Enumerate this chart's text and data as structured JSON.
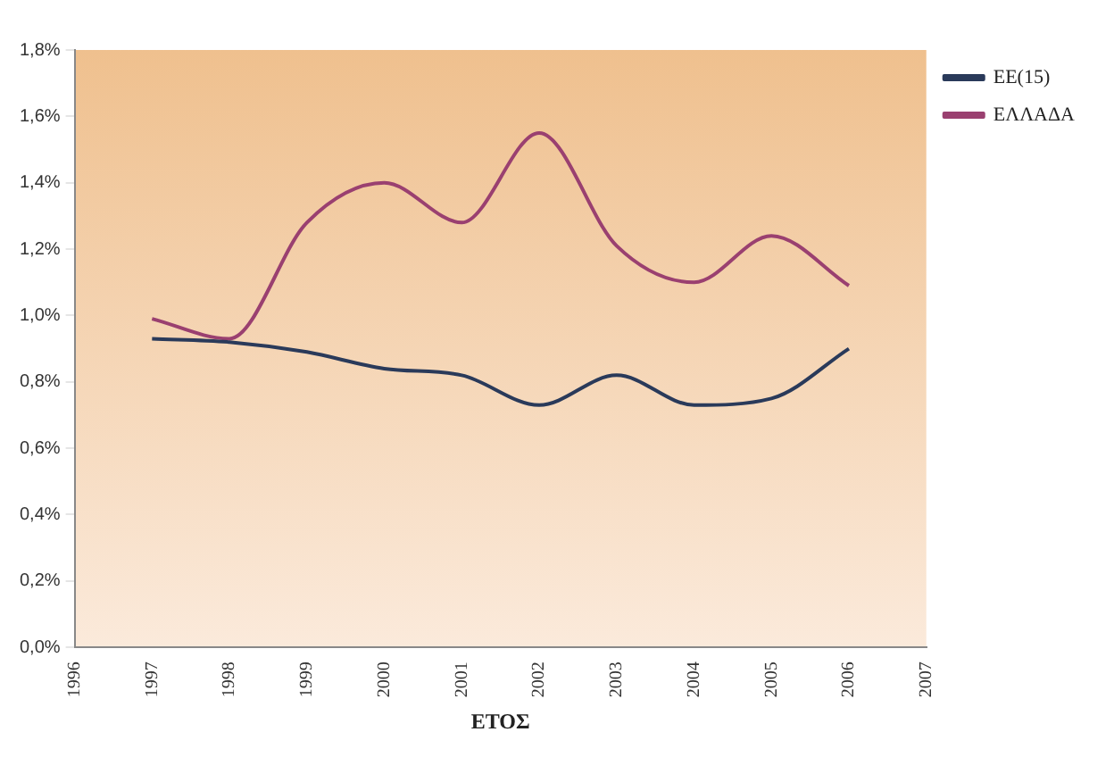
{
  "chart_data": {
    "type": "line",
    "xlabel": "ΕΤΟΣ",
    "x": [
      1997,
      1998,
      1999,
      2000,
      2001,
      2002,
      2003,
      2004,
      2005,
      2006
    ],
    "series": [
      {
        "name": "EE(15)",
        "color": "#2a3a5a",
        "values": [
          0.93,
          0.92,
          0.89,
          0.84,
          0.82,
          0.73,
          0.82,
          0.73,
          0.75,
          0.9
        ]
      },
      {
        "name": "ΕΛΛΑΔΑ",
        "color": "#9a4070",
        "values": [
          0.99,
          0.93,
          1.28,
          1.4,
          1.28,
          1.55,
          1.21,
          1.1,
          1.24,
          1.09
        ]
      }
    ],
    "xlim": [
      1996,
      2007
    ],
    "xticks": [
      1996,
      1997,
      1998,
      1999,
      2000,
      2001,
      2002,
      2003,
      2004,
      2005,
      2006,
      2007
    ],
    "ylim": [
      0,
      1.8
    ],
    "yticks": [
      {
        "value": 0,
        "label": "0,0%"
      },
      {
        "value": 0.2,
        "label": "0,2%"
      },
      {
        "value": 0.4,
        "label": "0,4%"
      },
      {
        "value": 0.6,
        "label": "0,6%"
      },
      {
        "value": 0.8,
        "label": "0,8%"
      },
      {
        "value": 1.0,
        "label": "1,0%"
      },
      {
        "value": 1.2,
        "label": "1,2%"
      },
      {
        "value": 1.4,
        "label": "1,4%"
      },
      {
        "value": 1.6,
        "label": "1,6%"
      },
      {
        "value": 1.8,
        "label": "1,8%"
      }
    ],
    "grid": false,
    "legend": "top right",
    "marker": "none",
    "line_style": "solid"
  }
}
